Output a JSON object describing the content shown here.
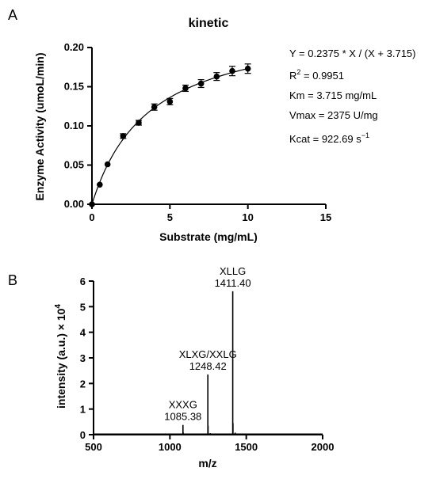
{
  "chart_data": [
    {
      "type": "scatter",
      "panel": "A",
      "title": "kinetic",
      "xlabel": "Substrate (mg/mL)",
      "ylabel": "Enzyme Activity (umoL/min)",
      "xlim": [
        0,
        15
      ],
      "ylim": [
        0,
        0.2
      ],
      "x_ticks": [
        "0",
        "5",
        "10",
        "15"
      ],
      "y_ticks": [
        "0.00",
        "0.05",
        "0.10",
        "0.15",
        "0.20"
      ],
      "series": [
        {
          "x": [
            0,
            0.5,
            1,
            2,
            3,
            4,
            5,
            6,
            7,
            8,
            9,
            10
          ],
          "y": [
            0.0,
            0.025,
            0.051,
            0.087,
            0.104,
            0.124,
            0.131,
            0.148,
            0.154,
            0.163,
            0.17,
            0.173
          ],
          "err": [
            0.001,
            0.002,
            0.002,
            0.003,
            0.003,
            0.004,
            0.004,
            0.004,
            0.005,
            0.005,
            0.006,
            0.006
          ]
        }
      ],
      "fit": {
        "vmax": 0.2375,
        "km": 3.715
      },
      "annotations": {
        "equation": "Y = 0.2375 * X / (X + 3.715)",
        "r2_prefix": "R",
        "r2_sup": "2",
        "r2_value": " = 0.9951",
        "km": "Km = 3.715 mg/mL",
        "vmax": "Vmax = 2375 U/mg",
        "kcat_prefix": "Kcat = 922.69 s",
        "kcat_sup": "−1"
      },
      "grid": false
    },
    {
      "type": "line",
      "panel": "B",
      "xlabel": "m/z",
      "ylabel_prefix": "intensity (a.u.) × 10",
      "ylabel_sup": "4",
      "xlim": [
        500,
        2000
      ],
      "ylim": [
        0,
        6
      ],
      "x_ticks": [
        "500",
        "1000",
        "1500",
        "2000"
      ],
      "y_ticks": [
        "0",
        "1",
        "2",
        "3",
        "4",
        "5",
        "6"
      ],
      "peaks": [
        {
          "name": "XXXG",
          "mz": 1085.38,
          "mz_label": "1085.38",
          "intensity": 0.38
        },
        {
          "name": "XLXG/XXLG",
          "mz": 1248.42,
          "mz_label": "1248.42",
          "intensity": 2.35
        },
        {
          "name": "XLLG",
          "mz": 1411.4,
          "mz_label": "1411.40",
          "intensity": 5.6
        }
      ],
      "minor_peaks": [
        {
          "mz": 1087.4,
          "intensity": 0.08
        },
        {
          "mz": 1250.4,
          "intensity": 0.35
        },
        {
          "mz": 1264.4,
          "intensity": 0.06
        },
        {
          "mz": 1413.4,
          "intensity": 0.45
        },
        {
          "mz": 1427.4,
          "intensity": 0.08
        }
      ],
      "grid": false
    }
  ],
  "panel_labels": {
    "a": "A",
    "b": "B"
  }
}
